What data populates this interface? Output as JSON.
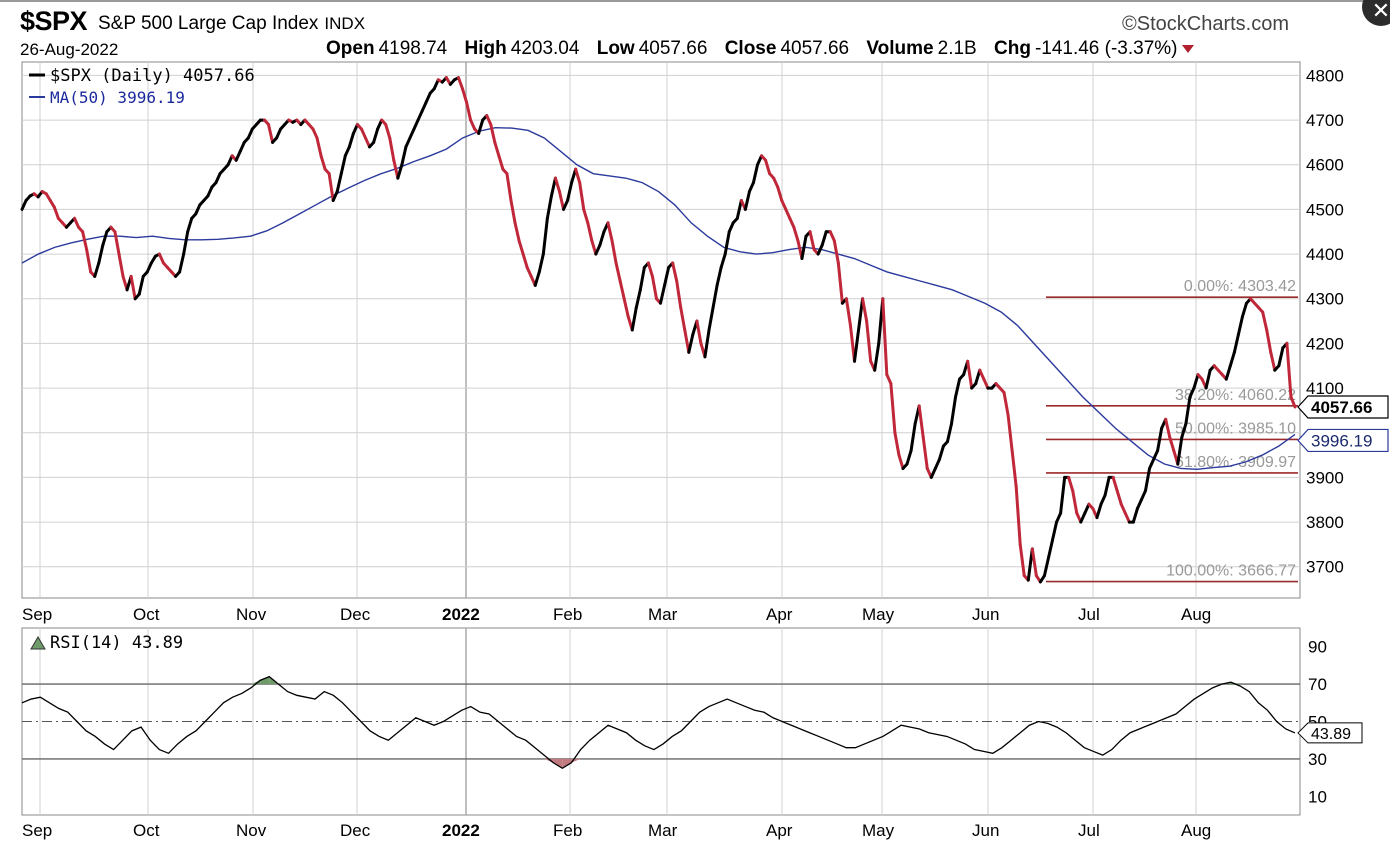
{
  "header": {
    "symbol": "$SPX",
    "name": "S&P 500 Large Cap Index",
    "exchange": "INDX",
    "brand": "©StockCharts.com",
    "close_icon": "close-icon",
    "date": "26-Aug-2022",
    "open_label": "Open",
    "open": "4198.74",
    "high_label": "High",
    "high": "4203.04",
    "low_label": "Low",
    "low": "4057.66",
    "close_label": "Close",
    "close": "4057.66",
    "volume_label": "Volume",
    "volume": "2.1B",
    "chg_label": "Chg",
    "chg": "-141.46 (-3.37%)"
  },
  "legend": {
    "price_series": "$SPX (Daily) 4057.66",
    "ma_series": "MA(50) 3996.19",
    "rsi_series": "RSI(14) 43.89"
  },
  "colors": {
    "up": "#000000",
    "down": "#c0283a",
    "ma": "#2b3a9c",
    "fib": "#9b2a2a",
    "rsi": "#000000",
    "grid": "#d0d0d0"
  },
  "chart_data": [
    {
      "type": "line",
      "ylim": [
        3630,
        4830
      ],
      "yticks": [
        3700,
        3800,
        3900,
        4000,
        4100,
        4200,
        4300,
        4400,
        4500,
        4600,
        4700,
        4800
      ],
      "ytick_labels": [
        "3700",
        "3800",
        "3900",
        "",
        "4100",
        "4200",
        "4300",
        "4400",
        "4500",
        "4600",
        "4700",
        "4800"
      ],
      "x_labels": [
        "Sep",
        "Oct",
        "Nov",
        "Dec",
        "2022",
        "Feb",
        "Mar",
        "Apr",
        "May",
        "Jun",
        "Jul",
        "Aug"
      ],
      "last_value_labels": {
        "price": "4057.66",
        "ma": "3996.19"
      },
      "series": [
        {
          "name": "$SPX (Daily)",
          "values": [
            4500,
            4520,
            4530,
            4535,
            4528,
            4540,
            4535,
            4520,
            4505,
            4480,
            4470,
            4460,
            4470,
            4480,
            4460,
            4450,
            4410,
            4360,
            4350,
            4380,
            4420,
            4450,
            4460,
            4450,
            4400,
            4350,
            4320,
            4350,
            4300,
            4310,
            4350,
            4360,
            4380,
            4395,
            4400,
            4380,
            4370,
            4360,
            4350,
            4360,
            4400,
            4450,
            4480,
            4490,
            4510,
            4520,
            4530,
            4550,
            4560,
            4580,
            4590,
            4600,
            4620,
            4610,
            4630,
            4650,
            4660,
            4680,
            4690,
            4700,
            4700,
            4690,
            4650,
            4660,
            4680,
            4690,
            4700,
            4695,
            4700,
            4690,
            4700,
            4690,
            4680,
            4660,
            4620,
            4590,
            4580,
            4520,
            4540,
            4580,
            4620,
            4640,
            4670,
            4690,
            4680,
            4660,
            4640,
            4650,
            4680,
            4700,
            4690,
            4660,
            4610,
            4570,
            4600,
            4640,
            4660,
            4680,
            4700,
            4720,
            4740,
            4760,
            4770,
            4790,
            4785,
            4795,
            4780,
            4790,
            4795,
            4770,
            4740,
            4700,
            4680,
            4670,
            4700,
            4710,
            4690,
            4650,
            4620,
            4590,
            4580,
            4520,
            4470,
            4430,
            4400,
            4370,
            4350,
            4330,
            4360,
            4400,
            4480,
            4530,
            4570,
            4540,
            4500,
            4520,
            4560,
            4590,
            4560,
            4500,
            4470,
            4430,
            4400,
            4420,
            4450,
            4470,
            4430,
            4380,
            4340,
            4300,
            4260,
            4230,
            4280,
            4320,
            4370,
            4380,
            4350,
            4300,
            4290,
            4330,
            4370,
            4380,
            4340,
            4280,
            4230,
            4180,
            4220,
            4250,
            4200,
            4170,
            4230,
            4280,
            4330,
            4370,
            4400,
            4450,
            4470,
            4480,
            4520,
            4500,
            4540,
            4560,
            4600,
            4620,
            4610,
            4580,
            4570,
            4550,
            4520,
            4500,
            4480,
            4460,
            4430,
            4390,
            4440,
            4450,
            4410,
            4400,
            4420,
            4450,
            4450,
            4430,
            4380,
            4290,
            4300,
            4240,
            4160,
            4230,
            4300,
            4250,
            4160,
            4140,
            4200,
            4300,
            4130,
            4110,
            4000,
            3950,
            3920,
            3930,
            3960,
            4020,
            4060,
            3990,
            3920,
            3900,
            3920,
            3940,
            3970,
            3980,
            4020,
            4080,
            4120,
            4130,
            4160,
            4100,
            4110,
            4140,
            4120,
            4100,
            4100,
            4110,
            4100,
            4090,
            4040,
            3960,
            3880,
            3750,
            3680,
            3670,
            3740,
            3680,
            3666,
            3680,
            3720,
            3760,
            3800,
            3820,
            3900,
            3900,
            3870,
            3820,
            3800,
            3820,
            3840,
            3830,
            3810,
            3840,
            3860,
            3900,
            3900,
            3870,
            3840,
            3820,
            3800,
            3800,
            3830,
            3850,
            3870,
            3920,
            3940,
            3960,
            4010,
            4030,
            3990,
            3960,
            3930,
            3990,
            4020,
            4080,
            4100,
            4130,
            4120,
            4100,
            4140,
            4150,
            4140,
            4130,
            4120,
            4150,
            4180,
            4220,
            4260,
            4290,
            4300,
            4290,
            4280,
            4270,
            4230,
            4180,
            4140,
            4150,
            4190,
            4200,
            4080,
            4057.66
          ]
        },
        {
          "name": "MA(50)",
          "values": [
            4380,
            4400,
            4415,
            4425,
            4433,
            4440,
            4440,
            4437,
            4440,
            4435,
            4432,
            4432,
            4433,
            4436,
            4440,
            4452,
            4470,
            4490,
            4510,
            4530,
            4548,
            4565,
            4580,
            4592,
            4607,
            4620,
            4635,
            4660,
            4675,
            4683,
            4682,
            4677,
            4660,
            4630,
            4600,
            4580,
            4575,
            4570,
            4560,
            4540,
            4510,
            4470,
            4440,
            4415,
            4405,
            4400,
            4403,
            4410,
            4415,
            4410,
            4400,
            4390,
            4375,
            4360,
            4350,
            4340,
            4330,
            4320,
            4305,
            4290,
            4270,
            4240,
            4200,
            4160,
            4120,
            4080,
            4045,
            4010,
            3980,
            3950,
            3930,
            3920,
            3918,
            3922,
            3925,
            3935,
            3950,
            3970,
            3996.19
          ]
        }
      ],
      "fib_levels": [
        {
          "label": "0.00%: 4303.42",
          "value": 4303.42
        },
        {
          "label": "38.20%: 4060.22",
          "value": 4060.22
        },
        {
          "label": "50.00%: 3985.10",
          "value": 3985.1
        },
        {
          "label": "61.80%: 3909.97",
          "value": 3909.97
        },
        {
          "label": "100.00%: 3666.77",
          "value": 3666.77
        }
      ]
    },
    {
      "type": "line",
      "ylim": [
        0,
        100
      ],
      "yticks": [
        10,
        30,
        50,
        70,
        90
      ],
      "ytick_labels": [
        "10",
        "30",
        "50",
        "70",
        "90"
      ],
      "x_labels": [
        "Sep",
        "Oct",
        "Nov",
        "Dec",
        "2022",
        "Feb",
        "Mar",
        "Apr",
        "May",
        "Jun",
        "Jul",
        "Aug"
      ],
      "reference_lines": [
        30,
        50,
        70
      ],
      "last_value_label": "43.89",
      "series": [
        {
          "name": "RSI(14)",
          "values": [
            60,
            62,
            63,
            60,
            57,
            55,
            50,
            45,
            42,
            38,
            35,
            40,
            45,
            47,
            40,
            35,
            33,
            38,
            42,
            45,
            50,
            55,
            60,
            63,
            65,
            68,
            72,
            74,
            70,
            66,
            64,
            63,
            62,
            66,
            64,
            60,
            55,
            50,
            45,
            42,
            40,
            44,
            48,
            52,
            50,
            48,
            50,
            53,
            56,
            58,
            55,
            54,
            50,
            46,
            42,
            40,
            36,
            32,
            28,
            25,
            28,
            35,
            40,
            44,
            48,
            46,
            44,
            40,
            37,
            35,
            38,
            42,
            45,
            50,
            55,
            58,
            60,
            62,
            60,
            58,
            56,
            55,
            52,
            50,
            48,
            46,
            44,
            42,
            40,
            38,
            36,
            36,
            38,
            40,
            42,
            45,
            48,
            47,
            46,
            44,
            43,
            42,
            40,
            38,
            35,
            34,
            33,
            36,
            40,
            44,
            48,
            50,
            49,
            47,
            44,
            40,
            36,
            34,
            32,
            35,
            40,
            44,
            46,
            48,
            50,
            52,
            54,
            58,
            62,
            65,
            68,
            70,
            71,
            69,
            66,
            60,
            56,
            50,
            46,
            43.89
          ]
        }
      ]
    }
  ]
}
